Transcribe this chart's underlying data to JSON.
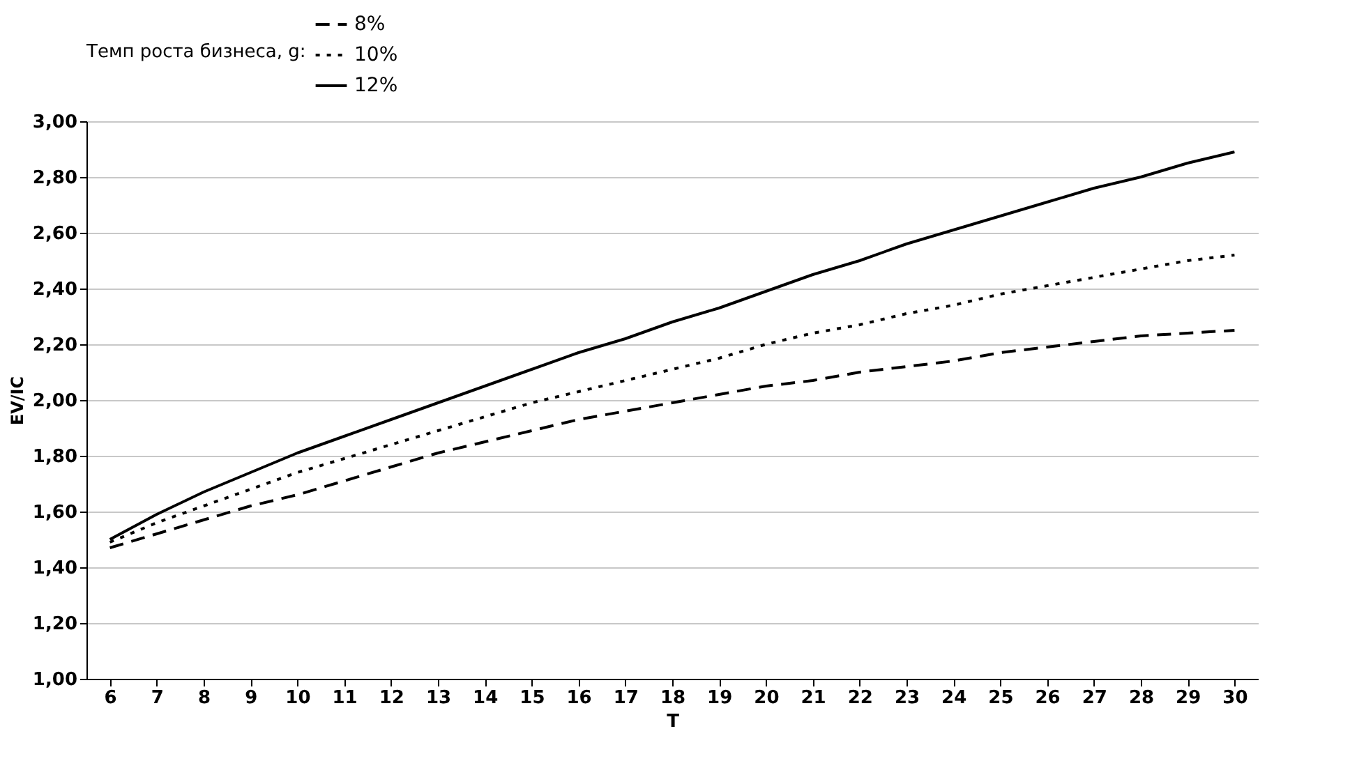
{
  "chart_data": {
    "type": "line",
    "xlabel": "T",
    "ylabel": "EV/IC",
    "legend_title": "Темп роста бизнеса, g:",
    "categories": [
      "6",
      "7",
      "8",
      "9",
      "10",
      "11",
      "12",
      "13",
      "14",
      "15",
      "16",
      "17",
      "18",
      "19",
      "20",
      "21",
      "22",
      "23",
      "24",
      "25",
      "26",
      "27",
      "28",
      "29",
      "30"
    ],
    "series": [
      {
        "name": "8%",
        "color": "#000000",
        "line_style": "dashed",
        "values": [
          1.47,
          1.52,
          1.57,
          1.62,
          1.66,
          1.71,
          1.76,
          1.81,
          1.85,
          1.89,
          1.93,
          1.96,
          1.99,
          2.02,
          2.05,
          2.07,
          2.1,
          2.12,
          2.14,
          2.17,
          2.19,
          2.21,
          2.23,
          2.24,
          2.25
        ]
      },
      {
        "name": "10%",
        "color": "#000000",
        "line_style": "dotted",
        "values": [
          1.49,
          1.56,
          1.62,
          1.68,
          1.74,
          1.79,
          1.84,
          1.89,
          1.94,
          1.99,
          2.03,
          2.07,
          2.11,
          2.15,
          2.2,
          2.24,
          2.27,
          2.31,
          2.34,
          2.38,
          2.41,
          2.44,
          2.47,
          2.5,
          2.52
        ]
      },
      {
        "name": "12%",
        "color": "#000000",
        "line_style": "solid",
        "values": [
          1.5,
          1.59,
          1.67,
          1.74,
          1.81,
          1.87,
          1.93,
          1.99,
          2.05,
          2.11,
          2.17,
          2.22,
          2.28,
          2.33,
          2.39,
          2.45,
          2.5,
          2.56,
          2.61,
          2.66,
          2.71,
          2.76,
          2.8,
          2.85,
          2.89
        ]
      }
    ],
    "ylim": [
      1.0,
      3.0
    ],
    "yticks": [
      {
        "value": 1.0,
        "label": "1,00"
      },
      {
        "value": 1.2,
        "label": "1,20"
      },
      {
        "value": 1.4,
        "label": "1,40"
      },
      {
        "value": 1.6,
        "label": "1,60"
      },
      {
        "value": 1.8,
        "label": "1,80"
      },
      {
        "value": 2.0,
        "label": "2,00"
      },
      {
        "value": 2.2,
        "label": "2,20"
      },
      {
        "value": 2.4,
        "label": "2,40"
      },
      {
        "value": 2.6,
        "label": "2,60"
      },
      {
        "value": 2.8,
        "label": "2,80"
      },
      {
        "value": 3.0,
        "label": "3,00"
      }
    ],
    "grid": "y",
    "legend": "top"
  }
}
